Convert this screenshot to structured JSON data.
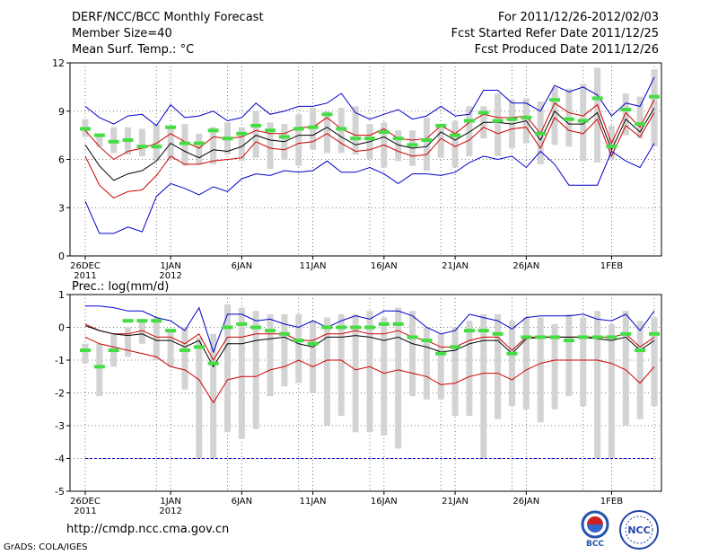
{
  "header": {
    "title": "DERF/NCC/BCC Monthly Forecast",
    "member_size": "Member Size=40",
    "variable": "Mean Surf. Temp.: °C",
    "forecast_period": "For 2011/12/26-2012/02/03",
    "start_date": "Fcst Started Refer Date 2011/12/25",
    "produced_date": "Fcst Produced Date 2011/12/26"
  },
  "footer": {
    "url": "http://cmdp.ncc.cma.gov.cn",
    "credit": "GrADS: COLA/IGES",
    "logo_bcc": "BCC",
    "logo_ncc": "NCC"
  },
  "colors": {
    "box": "#d3d3d4",
    "median": "#44dd44",
    "mean": "#000000",
    "spread": "#d00000",
    "extreme": "#0000cc"
  },
  "chart_data": [
    {
      "type": "boxplot-ensemble",
      "title": "Mean Surf. Temp.: °C",
      "ylim": [
        0,
        12
      ],
      "yticks": [
        0,
        3,
        6,
        9,
        12
      ],
      "xtick_labels": [
        {
          "day": 0,
          "label": "26DEC",
          "sub": "2011"
        },
        {
          "day": 6,
          "label": "1JAN",
          "sub": "2012"
        },
        {
          "day": 11,
          "label": "6JAN",
          "sub": ""
        },
        {
          "day": 16,
          "label": "11JAN",
          "sub": ""
        },
        {
          "day": 21,
          "label": "16JAN",
          "sub": ""
        },
        {
          "day": 26,
          "label": "21JAN",
          "sub": ""
        },
        {
          "day": 31,
          "label": "26JAN",
          "sub": ""
        },
        {
          "day": 37,
          "label": "1FEB",
          "sub": ""
        }
      ],
      "box_low": [
        7.4,
        6.8,
        6.4,
        6.3,
        6.2,
        5.9,
        6.0,
        5.6,
        5.7,
        5.7,
        6.3,
        5.9,
        6.1,
        5.4,
        6.0,
        5.6,
        6.6,
        6.4,
        6.4,
        6.3,
        6.0,
        5.5,
        5.9,
        5.6,
        5.3,
        6.1,
        5.5,
        6.2,
        7.3,
        6.2,
        6.7,
        7.0,
        5.7,
        6.9,
        6.8,
        5.9,
        5.8,
        6.0,
        7.5,
        7.3,
        6.8
      ],
      "box_high": [
        8.5,
        7.6,
        8.0,
        8.0,
        7.9,
        8.2,
        8.1,
        8.2,
        7.6,
        8.0,
        8.3,
        8.0,
        9.0,
        8.3,
        8.2,
        8.8,
        9.2,
        9.0,
        9.2,
        9.3,
        8.2,
        8.3,
        7.8,
        7.8,
        8.6,
        8.1,
        8.4,
        9.3,
        9.3,
        10.1,
        9.7,
        9.8,
        9.6,
        10.5,
        10.4,
        10.7,
        11.7,
        8.1,
        10.1,
        9.9,
        11.6
      ],
      "median": [
        7.9,
        7.5,
        7.1,
        7.2,
        6.8,
        6.8,
        8.0,
        7.0,
        7.0,
        7.8,
        7.3,
        7.6,
        8.1,
        7.8,
        7.4,
        7.9,
        8.0,
        8.8,
        7.9,
        7.3,
        7.3,
        7.7,
        7.3,
        6.9,
        7.2,
        8.1,
        7.5,
        8.4,
        8.9,
        8.4,
        8.5,
        8.6,
        7.6,
        9.7,
        8.5,
        8.4,
        9.8,
        6.8,
        9.1,
        8.2,
        9.9
      ],
      "series": [
        {
          "name": "max",
          "role": "extreme",
          "values": [
            9.3,
            8.6,
            8.2,
            8.7,
            8.8,
            8.1,
            9.4,
            8.6,
            8.7,
            9.0,
            8.4,
            8.6,
            9.5,
            8.8,
            9.0,
            9.3,
            9.3,
            9.5,
            10.1,
            8.9,
            8.5,
            8.8,
            9.1,
            8.5,
            8.7,
            9.3,
            8.7,
            8.8,
            10.3,
            10.3,
            9.5,
            9.5,
            9.0,
            10.6,
            10.2,
            10.5,
            10.0,
            8.7,
            9.5,
            9.3,
            11.1
          ]
        },
        {
          "name": "upper",
          "role": "spread",
          "values": [
            7.8,
            6.8,
            6.0,
            6.5,
            6.7,
            7.0,
            7.6,
            7.1,
            6.7,
            7.4,
            7.3,
            7.4,
            7.8,
            7.6,
            7.6,
            8.0,
            8.0,
            8.6,
            7.9,
            7.5,
            7.5,
            7.9,
            7.3,
            7.2,
            7.3,
            8.1,
            7.6,
            8.3,
            8.8,
            8.6,
            8.6,
            8.7,
            7.6,
            9.5,
            8.9,
            8.7,
            9.4,
            7.0,
            8.9,
            8.0,
            9.7
          ]
        },
        {
          "name": "mean",
          "role": "mean",
          "values": [
            6.9,
            5.6,
            4.7,
            5.1,
            5.3,
            5.9,
            7.0,
            6.5,
            6.1,
            6.6,
            6.5,
            6.8,
            7.5,
            7.2,
            7.1,
            7.5,
            7.5,
            8.0,
            7.4,
            6.9,
            7.1,
            7.4,
            6.9,
            6.7,
            6.8,
            7.7,
            7.2,
            7.7,
            8.3,
            8.3,
            8.2,
            8.4,
            7.2,
            9.0,
            8.2,
            8.2,
            8.9,
            6.6,
            8.5,
            7.7,
            9.2
          ]
        },
        {
          "name": "lower",
          "role": "spread",
          "values": [
            6.2,
            4.4,
            3.6,
            4.0,
            4.1,
            5.0,
            6.2,
            5.7,
            5.7,
            5.9,
            6.0,
            6.1,
            7.1,
            6.7,
            6.6,
            7.0,
            7.1,
            7.6,
            7.0,
            6.5,
            6.6,
            6.9,
            6.5,
            6.2,
            6.3,
            7.3,
            6.8,
            7.2,
            8.0,
            7.6,
            7.9,
            8.0,
            6.7,
            8.6,
            7.8,
            7.6,
            8.5,
            6.2,
            8.1,
            7.4,
            8.9
          ]
        },
        {
          "name": "min",
          "role": "extreme",
          "values": [
            3.4,
            1.4,
            1.4,
            1.8,
            1.5,
            3.7,
            4.5,
            4.2,
            3.8,
            4.3,
            4.0,
            4.8,
            5.1,
            5.0,
            5.3,
            5.2,
            5.3,
            5.9,
            5.2,
            5.2,
            5.5,
            5.1,
            4.5,
            5.1,
            5.1,
            5.0,
            5.2,
            5.8,
            6.2,
            6.0,
            6.2,
            5.5,
            6.5,
            5.7,
            4.4,
            4.4,
            4.4,
            6.5,
            5.9,
            5.5,
            7.0
          ]
        }
      ]
    },
    {
      "type": "boxplot-ensemble",
      "title": "Prec.: log(mm/d)",
      "ylim": [
        -5,
        1
      ],
      "yticks": [
        -5,
        -4,
        -3,
        -2,
        -1,
        0,
        1
      ],
      "xtick_labels": [
        {
          "day": 0,
          "label": "26DEC",
          "sub": "2011"
        },
        {
          "day": 6,
          "label": "1JAN",
          "sub": "2012"
        },
        {
          "day": 11,
          "label": "6JAN",
          "sub": ""
        },
        {
          "day": 16,
          "label": "11JAN",
          "sub": ""
        },
        {
          "day": 21,
          "label": "16JAN",
          "sub": ""
        },
        {
          "day": 26,
          "label": "21JAN",
          "sub": ""
        },
        {
          "day": 31,
          "label": "26JAN",
          "sub": ""
        },
        {
          "day": 37,
          "label": "1FEB",
          "sub": ""
        }
      ],
      "box_low": [
        -1.1,
        -2.1,
        -1.2,
        -0.9,
        -0.5,
        -1.0,
        -1.2,
        -1.9,
        -4.0,
        -4.0,
        -3.2,
        -3.4,
        -3.1,
        -2.1,
        -1.8,
        -1.7,
        -2.0,
        -3.0,
        -2.7,
        -3.2,
        -3.2,
        -3.3,
        -3.7,
        -2.1,
        -2.2,
        -2.2,
        -2.7,
        -2.7,
        -4.0,
        -2.8,
        -2.4,
        -2.5,
        -2.9,
        -2.5,
        -2.1,
        -2.4,
        -4.0,
        -4.0,
        -3.0,
        -2.8,
        -2.4
      ],
      "box_high": [
        -0.5,
        -0.5,
        -0.2,
        0.0,
        0.2,
        0.3,
        -0.1,
        0.0,
        -0.3,
        -0.2,
        0.7,
        0.6,
        0.5,
        0.4,
        0.4,
        0.4,
        0.2,
        0.3,
        0.4,
        0.4,
        0.5,
        0.3,
        0.6,
        0.5,
        0.0,
        -0.2,
        0.0,
        0.2,
        0.4,
        0.4,
        0.2,
        0.3,
        0.3,
        0.1,
        0.4,
        0.3,
        0.5,
        0.1,
        0.5,
        0.2,
        0.3
      ],
      "median": [
        -0.7,
        -1.2,
        -0.7,
        0.2,
        0.2,
        0.2,
        -0.1,
        -0.7,
        -0.6,
        -1.1,
        0.0,
        0.1,
        0.0,
        -0.1,
        -0.2,
        -0.4,
        -0.5,
        0.0,
        0.0,
        0.0,
        0.0,
        0.1,
        0.1,
        -0.3,
        -0.4,
        -0.8,
        -0.6,
        -0.1,
        -0.1,
        -0.2,
        -0.8,
        -0.3,
        -0.3,
        -0.3,
        -0.4,
        -0.3,
        -0.3,
        -0.3,
        -0.2,
        -0.7,
        -0.2
      ],
      "series": [
        {
          "name": "max",
          "role": "extreme",
          "values": [
            0.65,
            0.65,
            0.6,
            0.5,
            0.5,
            0.3,
            0.2,
            -0.1,
            0.6,
            -0.75,
            0.4,
            0.4,
            0.2,
            0.25,
            0.1,
            0.0,
            0.2,
            0.0,
            0.2,
            0.35,
            0.25,
            0.5,
            0.5,
            0.35,
            0.0,
            -0.2,
            -0.1,
            0.4,
            0.3,
            0.2,
            -0.05,
            0.3,
            0.35,
            0.35,
            0.35,
            0.4,
            0.25,
            0.2,
            0.4,
            -0.1,
            0.5
          ]
        },
        {
          "name": "upper",
          "role": "spread",
          "values": [
            0.1,
            -0.1,
            -0.2,
            -0.2,
            -0.1,
            -0.3,
            -0.3,
            -0.5,
            -0.2,
            -1.0,
            -0.3,
            -0.3,
            -0.2,
            -0.2,
            -0.2,
            -0.4,
            -0.4,
            -0.2,
            -0.2,
            -0.1,
            -0.2,
            -0.2,
            -0.1,
            -0.3,
            -0.4,
            -0.6,
            -0.6,
            -0.4,
            -0.3,
            -0.3,
            -0.7,
            -0.3,
            -0.3,
            -0.3,
            -0.3,
            -0.3,
            -0.3,
            -0.3,
            -0.2,
            -0.6,
            -0.3
          ]
        },
        {
          "name": "mean",
          "role": "mean",
          "values": [
            0.05,
            -0.1,
            -0.2,
            -0.25,
            -0.2,
            -0.4,
            -0.4,
            -0.6,
            -0.4,
            -1.2,
            -0.5,
            -0.5,
            -0.4,
            -0.35,
            -0.3,
            -0.5,
            -0.6,
            -0.3,
            -0.3,
            -0.25,
            -0.3,
            -0.4,
            -0.3,
            -0.5,
            -0.6,
            -0.75,
            -0.7,
            -0.5,
            -0.4,
            -0.4,
            -0.8,
            -0.35,
            -0.3,
            -0.3,
            -0.3,
            -0.3,
            -0.35,
            -0.4,
            -0.3,
            -0.7,
            -0.4
          ]
        },
        {
          "name": "lower",
          "role": "spread",
          "values": [
            -0.3,
            -0.5,
            -0.6,
            -0.7,
            -0.8,
            -0.9,
            -1.2,
            -1.3,
            -1.6,
            -2.3,
            -1.6,
            -1.5,
            -1.5,
            -1.3,
            -1.2,
            -1.0,
            -1.2,
            -1.0,
            -1.0,
            -1.3,
            -1.2,
            -1.4,
            -1.3,
            -1.4,
            -1.5,
            -1.75,
            -1.7,
            -1.5,
            -1.4,
            -1.4,
            -1.6,
            -1.3,
            -1.1,
            -1.0,
            -1.0,
            -1.0,
            -1.0,
            -1.1,
            -1.3,
            -1.7,
            -1.2
          ]
        },
        {
          "name": "min",
          "role": "extreme",
          "values": [
            -4,
            -4,
            -4,
            -4,
            -4,
            -4,
            -4,
            -4,
            -4,
            -4,
            -4,
            -4,
            -4,
            -4,
            -4,
            -4,
            -4,
            -4,
            -4,
            -4,
            -4,
            -4,
            -4,
            -4,
            -4,
            -4,
            -4,
            -4,
            -4,
            -4,
            -4,
            -4,
            -4,
            -4,
            -4,
            -4,
            -4,
            -4,
            -4,
            -4,
            -4
          ]
        }
      ]
    }
  ]
}
